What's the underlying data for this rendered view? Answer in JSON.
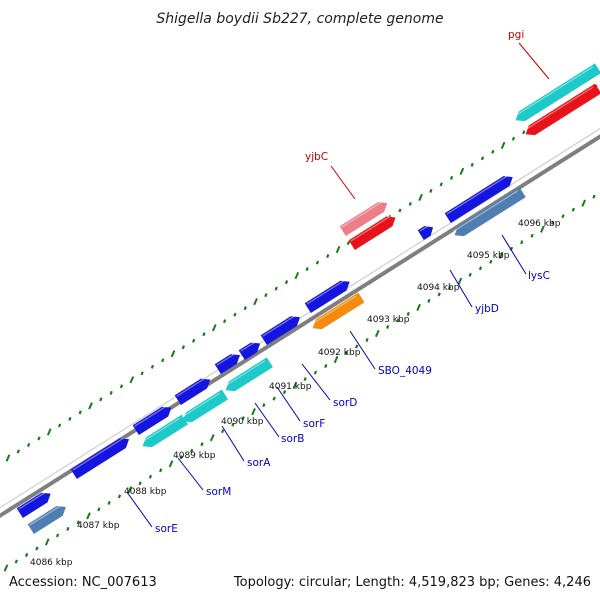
{
  "header": {
    "title": "Shigella boydii Sb227, complete genome"
  },
  "footer": {
    "accession": "Accession: NC_007613",
    "summary": "Topology: circular; Length: 4,519,823 bp; Genes: 4,246"
  },
  "scale": {
    "unit": "kbp",
    "ticks": [
      "4086 kbp",
      "4087 kbp",
      "4088 kbp",
      "4089 kbp",
      "4090 kbp",
      "4091 kbp",
      "4092 kbp",
      "4093 kbp",
      "4094 kbp",
      "4095 kbp",
      "4096 kbp"
    ]
  },
  "colors": {
    "backbone": "#7f7f7f",
    "tick": "#1a7a1a",
    "label_forward": "#cc0000",
    "label_reverse": "#0000cc",
    "blue": "#1515e0",
    "steel": "#4f7fb2",
    "cyan": "#1ec9c9",
    "red": "#e8131a",
    "pink": "#ec7e88",
    "orange": "#f48a0e"
  },
  "genes_reverse": [
    {
      "label": "sorE",
      "color_key": "blue"
    },
    {
      "label": "sorM",
      "color_key": "cyan"
    },
    {
      "label": "sorA",
      "color_key": "cyan"
    },
    {
      "label": "sorB",
      "color_key": "blue"
    },
    {
      "label": "sorF",
      "color_key": "blue"
    },
    {
      "label": "sorD",
      "color_key": "blue"
    },
    {
      "label": "SBO_4049",
      "color_key": "orange"
    },
    {
      "label": "yjbD",
      "color_key": "blue"
    },
    {
      "label": "lysC",
      "color_key": "steel"
    }
  ],
  "genes_forward": [
    {
      "label": "yjbC",
      "color_key": "red"
    },
    {
      "label": "pgi",
      "color_key": "red"
    }
  ]
}
